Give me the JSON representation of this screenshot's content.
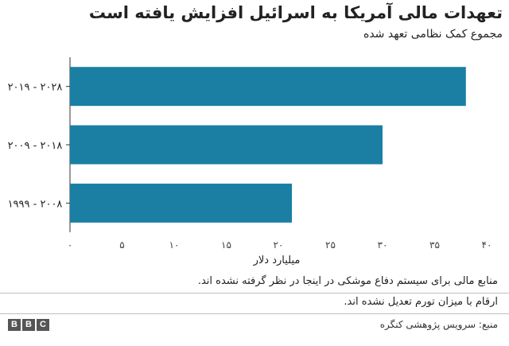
{
  "title": "تعهدات مالی آمریکا به اسرائیل افزایش یافته است",
  "subtitle": "مجموع کمک نظامی تعهد شده",
  "notes": [
    "منابع مالی برای سیستم دفاع موشکی در اینجا در نظر گرفته نشده اند.",
    "ارقام با میزان تورم تعدیل نشده اند."
  ],
  "source": "منبع: سرویس پژوهشی کنگره",
  "logo_letters": [
    "B",
    "B",
    "C"
  ],
  "chart_data": {
    "type": "bar",
    "orientation": "horizontal",
    "categories": [
      "۲۰۱۹ - ۲۰۲۸",
      "۲۰۰۹ - ۲۰۱۸",
      "۱۹۹۹ - ۲۰۰۸"
    ],
    "values": [
      38,
      30,
      21.3
    ],
    "xlabel": "میلیارد دلار",
    "xlim": [
      0,
      40
    ],
    "xticks": [
      0,
      5,
      10,
      15,
      20,
      25,
      30,
      35,
      40
    ],
    "xtick_labels": [
      "۰",
      "۵",
      "۱۰",
      "۱۵",
      "۲۰",
      "۲۵",
      "۳۰",
      "۳۵",
      "۴۰"
    ],
    "bar_color": "#1a7fa3",
    "grid": false
  }
}
